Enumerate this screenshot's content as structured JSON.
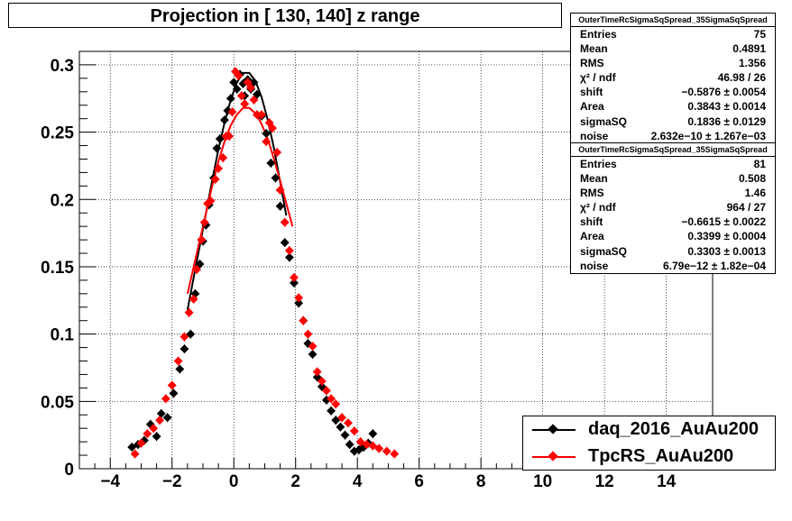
{
  "title": "Projection in [ 130, 140] z range",
  "colors": {
    "daq": "#000000",
    "tpcrs": "#ff0000"
  },
  "stats_boxes": [
    {
      "name": "OuterTimeRcSigmaSqSpread_35SigmaSqSpread",
      "rows": [
        {
          "label": "Entries",
          "value": "75"
        },
        {
          "label": "Mean",
          "value": "0.4891"
        },
        {
          "label": "RMS",
          "value": "1.356"
        },
        {
          "label": "χ² / ndf",
          "value": "46.98 / 26"
        },
        {
          "label": "shift",
          "value": "−0.5876 ± 0.0054"
        },
        {
          "label": "Area",
          "value": "0.3843 ± 0.0014"
        },
        {
          "label": "sigmaSQ",
          "value": "0.1836 ± 0.0129"
        },
        {
          "label": "noise",
          "value": "2.632e−10 ± 1.267e−03"
        }
      ]
    },
    {
      "name": "OuterTimeRcSigmaSqSpread_35SigmaSqSpread",
      "rows": [
        {
          "label": "Entries",
          "value": "81"
        },
        {
          "label": "Mean",
          "value": "0.508"
        },
        {
          "label": "RMS",
          "value": "1.46"
        },
        {
          "label": "χ² / ndf",
          "value": "964 / 27"
        },
        {
          "label": "shift",
          "value": "−0.6615 ± 0.0022"
        },
        {
          "label": "Area",
          "value": "0.3399 ± 0.0004"
        },
        {
          "label": "sigmaSQ",
          "value": "0.3303 ± 0.0013"
        },
        {
          "label": "noise",
          "value": "6.79e−12 ± 1.82e−04"
        }
      ]
    }
  ],
  "legend": [
    {
      "label": "daq_2016_AuAu200",
      "color": "#000000"
    },
    {
      "label": "TpcRS_AuAu200",
      "color": "#ff0000"
    }
  ],
  "chart_data": {
    "type": "scatter",
    "title": "Projection in [ 130, 140] z range",
    "xlim": [
      -5,
      15.5
    ],
    "ylim": [
      0,
      0.31
    ],
    "grid": true,
    "legend_position": "bottom-right",
    "x_ticks": [
      -4,
      -2,
      0,
      2,
      4,
      6,
      8,
      10,
      12,
      14
    ],
    "x_tick_labels": [
      "−4",
      "−2",
      "0",
      "2",
      "4",
      "6",
      "8",
      "10",
      "12",
      "14"
    ],
    "y_ticks": [
      0,
      0.05,
      0.1,
      0.15,
      0.2,
      0.25,
      0.3
    ],
    "y_tick_labels": [
      "0",
      "0.05",
      "0.1",
      "0.15",
      "0.2",
      "0.25",
      "0.3"
    ],
    "series": [
      {
        "name": "daq_2016_AuAu200",
        "color": "#000000",
        "points": [
          [
            -3.3,
            0.016
          ],
          [
            -3.1,
            0.018
          ],
          [
            -2.9,
            0.021
          ],
          [
            -2.7,
            0.033
          ],
          [
            -2.5,
            0.024
          ],
          [
            -2.35,
            0.041
          ],
          [
            -2.15,
            0.038
          ],
          [
            -1.95,
            0.056
          ],
          [
            -1.75,
            0.074
          ],
          [
            -1.6,
            0.089
          ],
          [
            -1.4,
            0.1
          ],
          [
            -1.25,
            0.13
          ],
          [
            -1.1,
            0.152
          ],
          [
            -1.0,
            0.169
          ],
          [
            -0.9,
            0.181
          ],
          [
            -0.8,
            0.196
          ],
          [
            -0.65,
            0.216
          ],
          [
            -0.55,
            0.238
          ],
          [
            -0.45,
            0.245
          ],
          [
            -0.3,
            0.259
          ],
          [
            -0.2,
            0.266
          ],
          [
            -0.1,
            0.275
          ],
          [
            0.0,
            0.287
          ],
          [
            0.1,
            0.282
          ],
          [
            0.2,
            0.293
          ],
          [
            0.3,
            0.286
          ],
          [
            0.35,
            0.277
          ],
          [
            0.45,
            0.289
          ],
          [
            0.55,
            0.282
          ],
          [
            0.65,
            0.287
          ],
          [
            0.75,
            0.278
          ],
          [
            0.9,
            0.262
          ],
          [
            1.05,
            0.249
          ],
          [
            1.2,
            0.227
          ],
          [
            1.35,
            0.216
          ],
          [
            1.5,
            0.195
          ],
          [
            1.65,
            0.168
          ],
          [
            1.8,
            0.157
          ],
          [
            1.95,
            0.138
          ],
          [
            2.1,
            0.123
          ],
          [
            2.25,
            0.11
          ],
          [
            2.4,
            0.093
          ],
          [
            2.55,
            0.085
          ],
          [
            2.7,
            0.068
          ],
          [
            2.85,
            0.061
          ],
          [
            3.0,
            0.051
          ],
          [
            3.15,
            0.043
          ],
          [
            3.3,
            0.036
          ],
          [
            3.45,
            0.031
          ],
          [
            3.6,
            0.025
          ],
          [
            3.75,
            0.018
          ],
          [
            3.9,
            0.013
          ],
          [
            4.05,
            0.014
          ],
          [
            4.2,
            0.016
          ],
          [
            4.35,
            0.019
          ],
          [
            4.5,
            0.026
          ]
        ]
      },
      {
        "name": "TpcRS_AuAu200",
        "color": "#ff0000",
        "points": [
          [
            -3.2,
            0.011
          ],
          [
            -3.0,
            0.019
          ],
          [
            -2.8,
            0.026
          ],
          [
            -2.6,
            0.03
          ],
          [
            -2.4,
            0.036
          ],
          [
            -2.2,
            0.052
          ],
          [
            -2.0,
            0.062
          ],
          [
            -1.8,
            0.08
          ],
          [
            -1.6,
            0.098
          ],
          [
            -1.45,
            0.116
          ],
          [
            -1.3,
            0.126
          ],
          [
            -1.2,
            0.148
          ],
          [
            -1.05,
            0.17
          ],
          [
            -0.95,
            0.183
          ],
          [
            -0.85,
            0.197
          ],
          [
            -0.75,
            0.199
          ],
          [
            -0.6,
            0.215
          ],
          [
            -0.5,
            0.223
          ],
          [
            -0.35,
            0.231
          ],
          [
            -0.25,
            0.247
          ],
          [
            -0.15,
            0.247
          ],
          [
            -0.05,
            0.265
          ],
          [
            0.05,
            0.295
          ],
          [
            0.15,
            0.292
          ],
          [
            0.25,
            0.277
          ],
          [
            0.35,
            0.271
          ],
          [
            0.45,
            0.287
          ],
          [
            0.55,
            0.283
          ],
          [
            0.65,
            0.274
          ],
          [
            0.75,
            0.263
          ],
          [
            0.9,
            0.263
          ],
          [
            1.05,
            0.243
          ],
          [
            1.15,
            0.257
          ],
          [
            1.25,
            0.253
          ],
          [
            1.4,
            0.235
          ],
          [
            1.5,
            0.207
          ],
          [
            1.65,
            0.183
          ],
          [
            1.8,
            0.162
          ],
          [
            1.95,
            0.142
          ],
          [
            2.1,
            0.127
          ],
          [
            2.25,
            0.11
          ],
          [
            2.4,
            0.1
          ],
          [
            2.55,
            0.091
          ],
          [
            2.7,
            0.072
          ],
          [
            2.85,
            0.065
          ],
          [
            3.0,
            0.058
          ],
          [
            3.15,
            0.052
          ],
          [
            3.3,
            0.048
          ],
          [
            3.5,
            0.038
          ],
          [
            3.7,
            0.034
          ],
          [
            3.9,
            0.028
          ],
          [
            4.1,
            0.02
          ],
          [
            4.3,
            0.018
          ],
          [
            4.5,
            0.017
          ],
          [
            4.7,
            0.015
          ],
          [
            4.95,
            0.013
          ],
          [
            5.2,
            0.011
          ]
        ]
      }
    ],
    "fits": [
      {
        "series": "daq_2016_AuAu200",
        "color": "#000000",
        "points": [
          [
            -1.5,
            0.118
          ],
          [
            -1.3,
            0.142
          ],
          [
            -1.1,
            0.166
          ],
          [
            -0.9,
            0.19
          ],
          [
            -0.7,
            0.214
          ],
          [
            -0.5,
            0.237
          ],
          [
            -0.3,
            0.257
          ],
          [
            -0.1,
            0.274
          ],
          [
            0.1,
            0.287
          ],
          [
            0.3,
            0.294
          ],
          [
            0.5,
            0.294
          ],
          [
            0.7,
            0.288
          ],
          [
            0.9,
            0.276
          ],
          [
            1.1,
            0.259
          ],
          [
            1.3,
            0.238
          ],
          [
            1.5,
            0.213
          ],
          [
            1.7,
            0.188
          ]
        ]
      },
      {
        "series": "TpcRS_AuAu200",
        "color": "#ff0000",
        "points": [
          [
            -1.5,
            0.13
          ],
          [
            -1.3,
            0.15
          ],
          [
            -1.1,
            0.17
          ],
          [
            -0.9,
            0.19
          ],
          [
            -0.7,
            0.21
          ],
          [
            -0.5,
            0.228
          ],
          [
            -0.3,
            0.243
          ],
          [
            -0.1,
            0.255
          ],
          [
            0.1,
            0.263
          ],
          [
            0.3,
            0.268
          ],
          [
            0.5,
            0.268
          ],
          [
            0.7,
            0.264
          ],
          [
            0.9,
            0.256
          ],
          [
            1.1,
            0.245
          ],
          [
            1.3,
            0.23
          ],
          [
            1.5,
            0.214
          ],
          [
            1.7,
            0.197
          ],
          [
            1.9,
            0.18
          ]
        ]
      }
    ]
  }
}
